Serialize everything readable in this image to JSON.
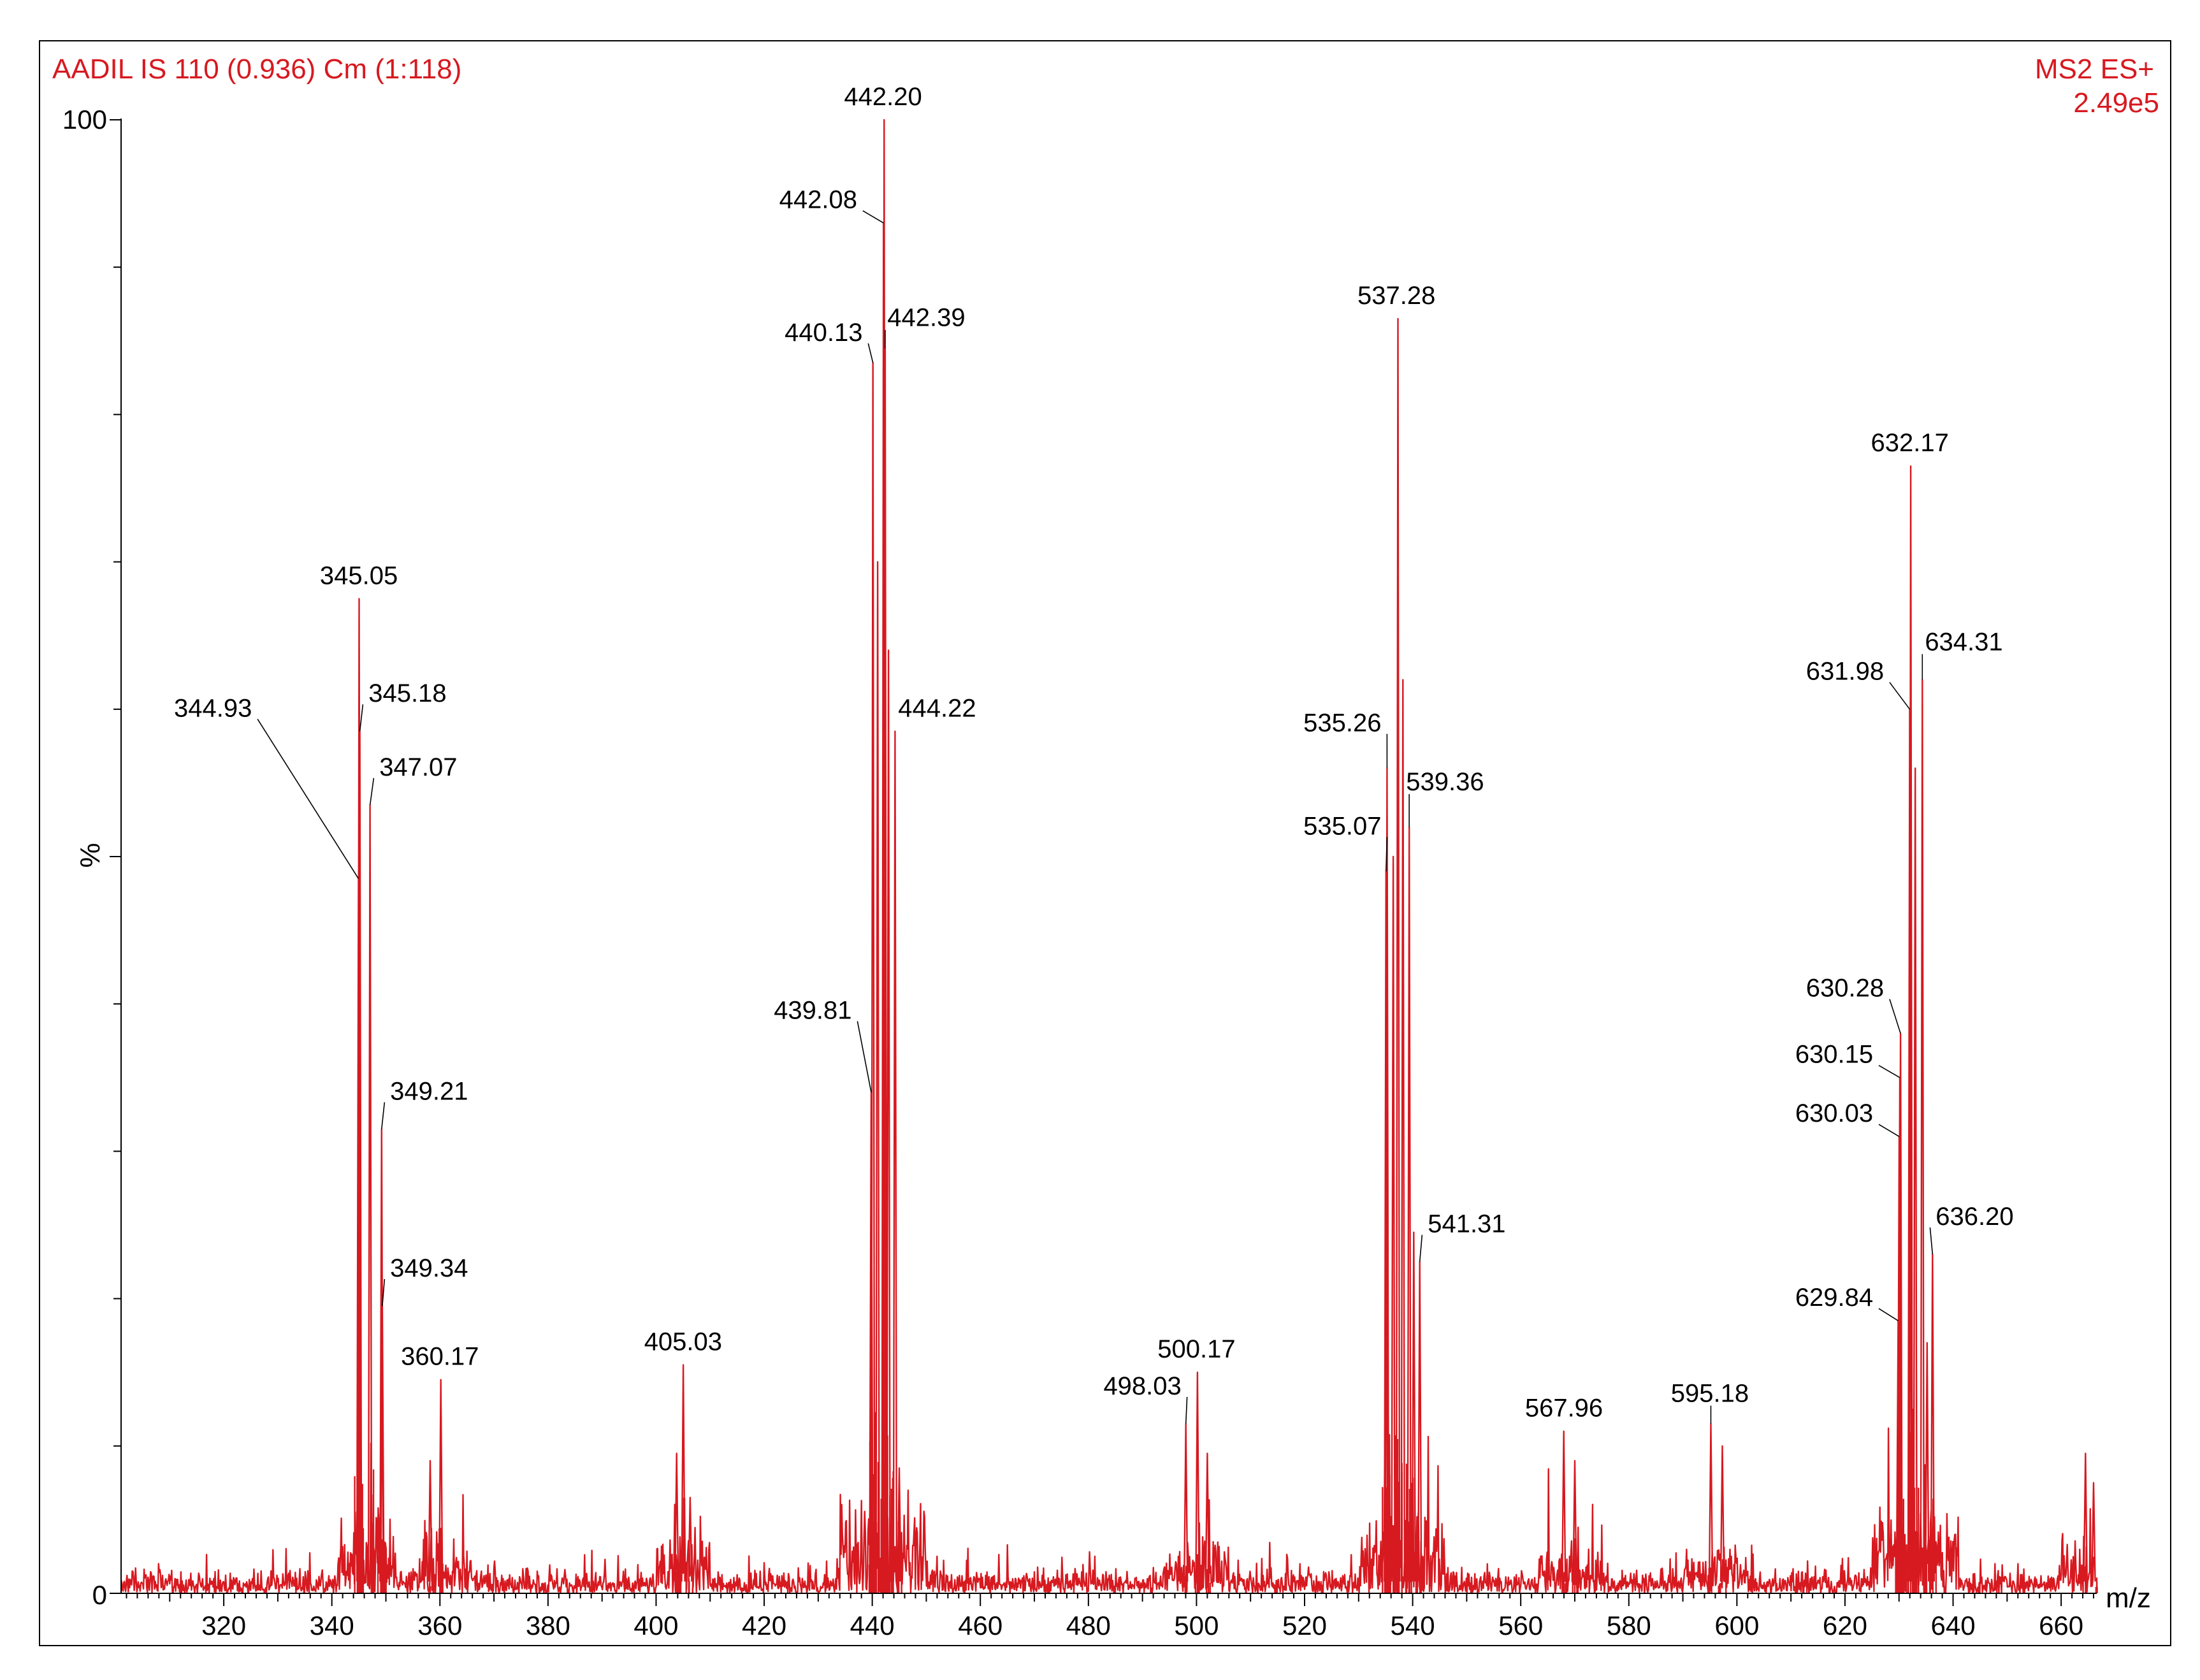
{
  "header": {
    "left": "AADIL IS  110 (0.936) Cm (1:118)",
    "right_line1": "MS2 ES+",
    "right_line2": "2.49e5"
  },
  "colors": {
    "spectrum": "#d71920",
    "axis": "#000000",
    "label_text": "#000000",
    "header": "#d71920"
  },
  "chart_data": {
    "type": "line",
    "xlabel": "m/z",
    "ylabel": "%",
    "xlim": [
      301,
      666
    ],
    "ylim": [
      0,
      100
    ],
    "y_tick_labels": [
      "100",
      "0"
    ],
    "x_tick_labels": [
      320,
      340,
      360,
      380,
      400,
      420,
      440,
      460,
      480,
      500,
      520,
      540,
      560,
      580,
      600,
      620,
      640,
      660
    ],
    "noise_level_percent": 1.8,
    "peaks": [
      {
        "x": 344.93,
        "y": 48.5,
        "label": "344.93",
        "lx": 318,
        "ly": 59.5
      },
      {
        "x": 345.05,
        "y": 67.5,
        "label": "345.05",
        "lx": 345,
        "ly": 68.5
      },
      {
        "x": 345.18,
        "y": 58.5,
        "label": "345.18",
        "lx": 354,
        "ly": 60.5
      },
      {
        "x": 347.07,
        "y": 53.5,
        "label": "347.07",
        "lx": 356,
        "ly": 55.5
      },
      {
        "x": 349.21,
        "y": 31.5,
        "label": "349.21",
        "lx": 358,
        "ly": 33.5
      },
      {
        "x": 349.34,
        "y": 19.5,
        "label": "349.34",
        "lx": 358,
        "ly": 21.5
      },
      {
        "x": 358.2,
        "y": 9.0
      },
      {
        "x": 360.17,
        "y": 14.5,
        "label": "360.17",
        "lx": 360,
        "ly": 15.5
      },
      {
        "x": 403.8,
        "y": 9.5
      },
      {
        "x": 405.03,
        "y": 15.5,
        "label": "405.03",
        "lx": 405,
        "ly": 16.5
      },
      {
        "x": 406.3,
        "y": 6.5
      },
      {
        "x": 439.81,
        "y": 34.0,
        "label": "439.81",
        "lx": 429,
        "ly": 39.0
      },
      {
        "x": 440.13,
        "y": 83.5,
        "label": "440.13",
        "lx": 431,
        "ly": 85.0
      },
      {
        "x": 441.0,
        "y": 70.0
      },
      {
        "x": 442.08,
        "y": 93.0,
        "label": "442.08",
        "lx": 430,
        "ly": 94.0
      },
      {
        "x": 442.2,
        "y": 100.0,
        "label": "442.20",
        "lx": 442,
        "ly": 101.0
      },
      {
        "x": 442.39,
        "y": 84.5,
        "label": "442.39",
        "lx": 450,
        "ly": 86.0
      },
      {
        "x": 443.0,
        "y": 64.0
      },
      {
        "x": 444.22,
        "y": 58.5,
        "label": "444.22",
        "lx": 452,
        "ly": 59.5
      },
      {
        "x": 445.0,
        "y": 8.5
      },
      {
        "x": 498.03,
        "y": 11.5,
        "label": "498.03",
        "lx": 490,
        "ly": 13.5
      },
      {
        "x": 500.17,
        "y": 15.0,
        "label": "500.17",
        "lx": 500,
        "ly": 16.0
      },
      {
        "x": 502.0,
        "y": 9.5
      },
      {
        "x": 535.07,
        "y": 49.0,
        "label": "535.07",
        "lx": 527,
        "ly": 51.5
      },
      {
        "x": 535.26,
        "y": 56.0,
        "label": "535.26",
        "lx": 527,
        "ly": 58.5
      },
      {
        "x": 536.4,
        "y": 50.0
      },
      {
        "x": 537.28,
        "y": 86.5,
        "label": "537.28",
        "lx": 537,
        "ly": 87.5
      },
      {
        "x": 538.2,
        "y": 62.0
      },
      {
        "x": 539.36,
        "y": 52.0,
        "label": "539.36",
        "lx": 546,
        "ly": 54.5
      },
      {
        "x": 540.2,
        "y": 24.5
      },
      {
        "x": 541.31,
        "y": 22.5,
        "label": "541.31",
        "lx": 550,
        "ly": 24.5
      },
      {
        "x": 567.96,
        "y": 11.0,
        "label": "567.96",
        "lx": 568,
        "ly": 12.0
      },
      {
        "x": 570.0,
        "y": 9.0
      },
      {
        "x": 595.18,
        "y": 11.5,
        "label": "595.18",
        "lx": 595,
        "ly": 13.0
      },
      {
        "x": 597.3,
        "y": 10.0
      },
      {
        "x": 629.84,
        "y": 18.5,
        "label": "629.84",
        "lx": 618,
        "ly": 19.5
      },
      {
        "x": 630.03,
        "y": 31.0,
        "label": "630.03",
        "lx": 618,
        "ly": 32.0
      },
      {
        "x": 630.15,
        "y": 35.0,
        "label": "630.15",
        "lx": 618,
        "ly": 36.0
      },
      {
        "x": 630.28,
        "y": 38.0,
        "label": "630.28",
        "lx": 620,
        "ly": 40.5
      },
      {
        "x": 631.98,
        "y": 60.0,
        "label": "631.98",
        "lx": 620,
        "ly": 62.0
      },
      {
        "x": 632.17,
        "y": 76.5,
        "label": "632.17",
        "lx": 632,
        "ly": 77.5
      },
      {
        "x": 633.0,
        "y": 56.0
      },
      {
        "x": 634.31,
        "y": 62.0,
        "label": "634.31",
        "lx": 642,
        "ly": 64.0
      },
      {
        "x": 635.2,
        "y": 17.0
      },
      {
        "x": 636.2,
        "y": 23.0,
        "label": "636.20",
        "lx": 644,
        "ly": 25.0
      },
      {
        "x": 664.5,
        "y": 9.5
      },
      {
        "x": 666.0,
        "y": 7.5
      }
    ],
    "grass_zones": [
      {
        "x0": 341,
        "x1": 352,
        "level": 6
      },
      {
        "x0": 356,
        "x1": 366,
        "level": 5
      },
      {
        "x0": 400,
        "x1": 410,
        "level": 5
      },
      {
        "x0": 434,
        "x1": 450,
        "level": 7
      },
      {
        "x0": 494,
        "x1": 506,
        "level": 4
      },
      {
        "x0": 530,
        "x1": 546,
        "level": 6
      },
      {
        "x0": 563,
        "x1": 575,
        "level": 4
      },
      {
        "x0": 590,
        "x1": 603,
        "level": 4
      },
      {
        "x0": 625,
        "x1": 641,
        "level": 7
      },
      {
        "x0": 660,
        "x1": 666,
        "level": 4
      }
    ]
  }
}
